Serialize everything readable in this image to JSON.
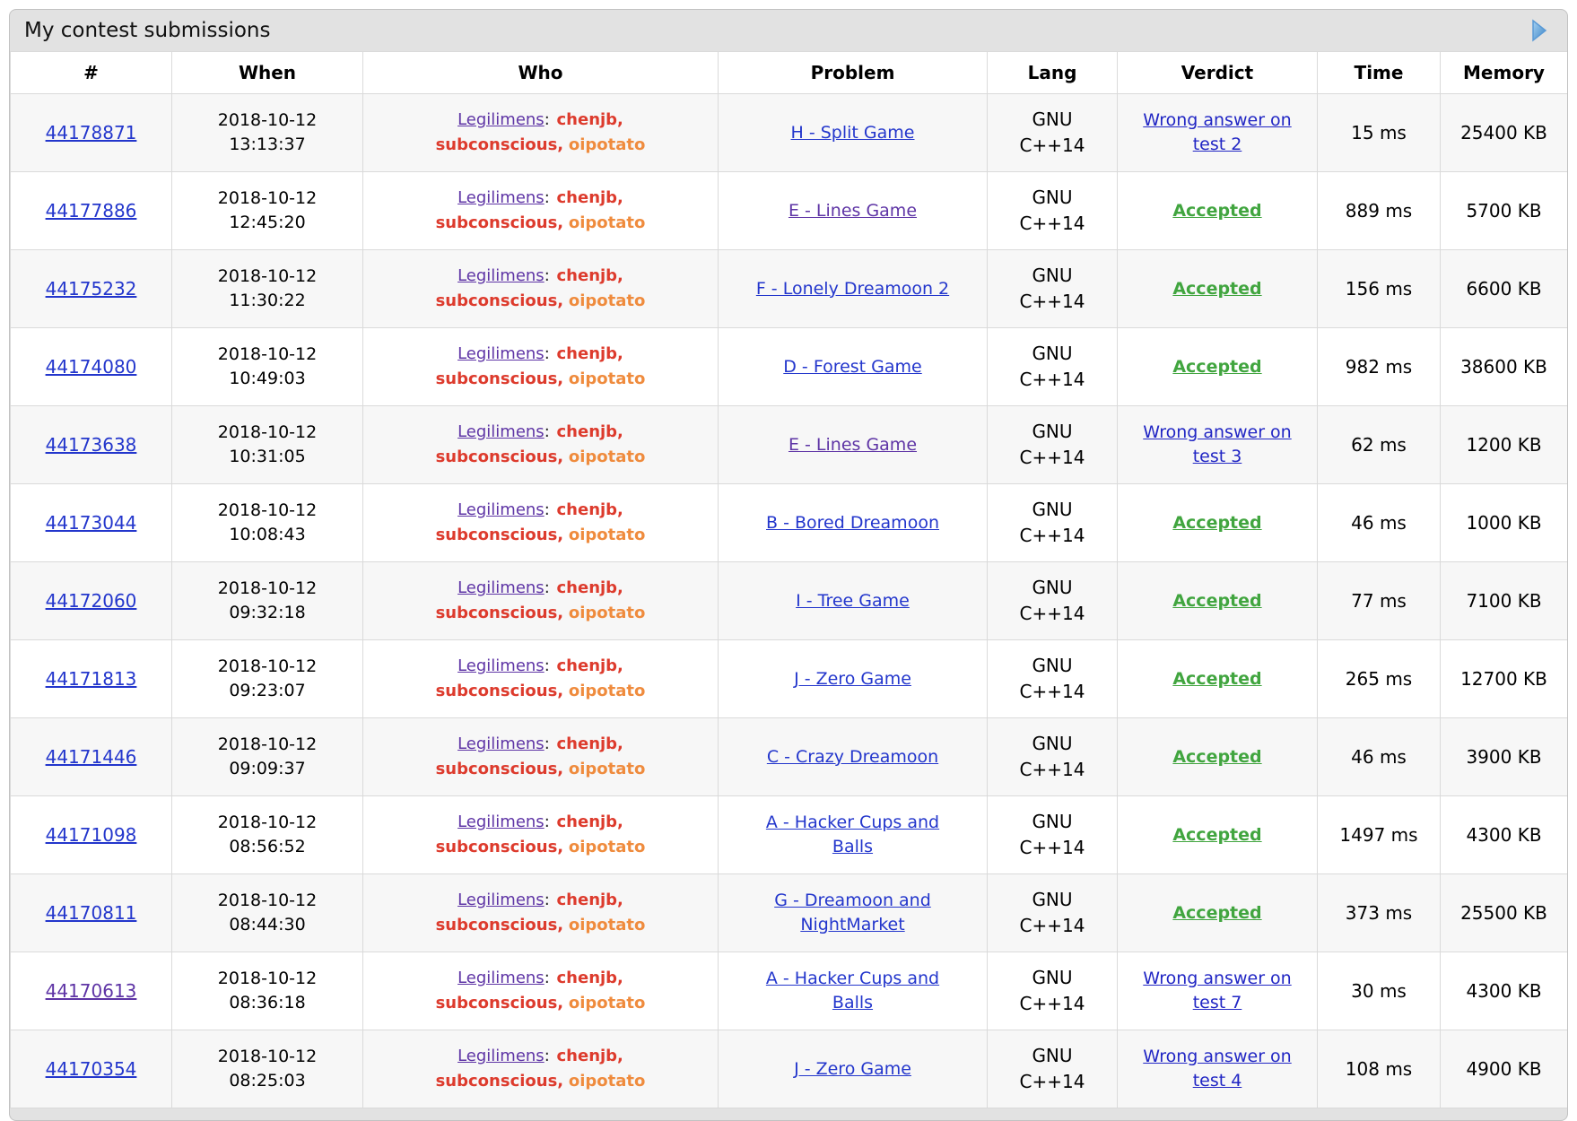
{
  "widget": {
    "title": "My contest submissions",
    "arrow_icon": "play-arrow"
  },
  "colors": {
    "link_blue": "#2336cc",
    "link_visited": "#5e34a5",
    "verdict_accepted": "#41a53f",
    "verdict_wrong": "#2126c4",
    "member_red": "#dd3b2d",
    "member_orange": "#ef8b3d",
    "caption_bg": "#e2e2e2",
    "zebra_row_bg": "#f7f7f7"
  },
  "table": {
    "headers": [
      "#",
      "When",
      "Who",
      "Problem",
      "Lang",
      "Verdict",
      "Time",
      "Memory"
    ],
    "team": {
      "name": "Legilimens",
      "separator": ":",
      "members": [
        {
          "handle": "chenjb",
          "color": "#dd3b2d"
        },
        {
          "handle": "subconscious",
          "color": "#dd3b2d"
        },
        {
          "handle": "oipotato",
          "color": "#ef8b3d"
        }
      ]
    },
    "rows": [
      {
        "id": "44178871",
        "id_visited": false,
        "date": "2018-10-12",
        "time_of_day": "13:13:37",
        "problem": "H - Split Game",
        "problem_visited": false,
        "lang": "GNU C++14",
        "verdict": "Wrong answer on test 2",
        "verdict_type": "wa",
        "time": "15 ms",
        "memory": "25400 KB"
      },
      {
        "id": "44177886",
        "id_visited": false,
        "date": "2018-10-12",
        "time_of_day": "12:45:20",
        "problem": "E - Lines Game",
        "problem_visited": true,
        "lang": "GNU C++14",
        "verdict": "Accepted",
        "verdict_type": "ok",
        "time": "889 ms",
        "memory": "5700 KB"
      },
      {
        "id": "44175232",
        "id_visited": false,
        "date": "2018-10-12",
        "time_of_day": "11:30:22",
        "problem": "F - Lonely Dreamoon 2",
        "problem_visited": false,
        "lang": "GNU C++14",
        "verdict": "Accepted",
        "verdict_type": "ok",
        "time": "156 ms",
        "memory": "6600 KB"
      },
      {
        "id": "44174080",
        "id_visited": false,
        "date": "2018-10-12",
        "time_of_day": "10:49:03",
        "problem": "D - Forest Game",
        "problem_visited": false,
        "lang": "GNU C++14",
        "verdict": "Accepted",
        "verdict_type": "ok",
        "time": "982 ms",
        "memory": "38600 KB"
      },
      {
        "id": "44173638",
        "id_visited": false,
        "date": "2018-10-12",
        "time_of_day": "10:31:05",
        "problem": "E - Lines Game",
        "problem_visited": true,
        "lang": "GNU C++14",
        "verdict": "Wrong answer on test 3",
        "verdict_type": "wa",
        "time": "62 ms",
        "memory": "1200 KB"
      },
      {
        "id": "44173044",
        "id_visited": false,
        "date": "2018-10-12",
        "time_of_day": "10:08:43",
        "problem": "B - Bored Dreamoon",
        "problem_visited": false,
        "lang": "GNU C++14",
        "verdict": "Accepted",
        "verdict_type": "ok",
        "time": "46 ms",
        "memory": "1000 KB"
      },
      {
        "id": "44172060",
        "id_visited": false,
        "date": "2018-10-12",
        "time_of_day": "09:32:18",
        "problem": "I - Tree Game",
        "problem_visited": false,
        "lang": "GNU C++14",
        "verdict": "Accepted",
        "verdict_type": "ok",
        "time": "77 ms",
        "memory": "7100 KB"
      },
      {
        "id": "44171813",
        "id_visited": false,
        "date": "2018-10-12",
        "time_of_day": "09:23:07",
        "problem": "J - Zero Game",
        "problem_visited": false,
        "lang": "GNU C++14",
        "verdict": "Accepted",
        "verdict_type": "ok",
        "time": "265 ms",
        "memory": "12700 KB"
      },
      {
        "id": "44171446",
        "id_visited": false,
        "date": "2018-10-12",
        "time_of_day": "09:09:37",
        "problem": "C - Crazy Dreamoon",
        "problem_visited": false,
        "lang": "GNU C++14",
        "verdict": "Accepted",
        "verdict_type": "ok",
        "time": "46 ms",
        "memory": "3900 KB"
      },
      {
        "id": "44171098",
        "id_visited": false,
        "date": "2018-10-12",
        "time_of_day": "08:56:52",
        "problem": "A - Hacker Cups and Balls",
        "problem_visited": false,
        "lang": "GNU C++14",
        "verdict": "Accepted",
        "verdict_type": "ok",
        "time": "1497 ms",
        "memory": "4300 KB"
      },
      {
        "id": "44170811",
        "id_visited": false,
        "date": "2018-10-12",
        "time_of_day": "08:44:30",
        "problem": "G - Dreamoon and NightMarket",
        "problem_visited": false,
        "lang": "GNU C++14",
        "verdict": "Accepted",
        "verdict_type": "ok",
        "time": "373 ms",
        "memory": "25500 KB"
      },
      {
        "id": "44170613",
        "id_visited": true,
        "date": "2018-10-12",
        "time_of_day": "08:36:18",
        "problem": "A - Hacker Cups and Balls",
        "problem_visited": false,
        "lang": "GNU C++14",
        "verdict": "Wrong answer on test 7",
        "verdict_type": "wa",
        "time": "30 ms",
        "memory": "4300 KB"
      },
      {
        "id": "44170354",
        "id_visited": false,
        "date": "2018-10-12",
        "time_of_day": "08:25:03",
        "problem": "J - Zero Game",
        "problem_visited": false,
        "lang": "GNU C++14",
        "verdict": "Wrong answer on test 4",
        "verdict_type": "wa",
        "time": "108 ms",
        "memory": "4900 KB"
      }
    ]
  }
}
